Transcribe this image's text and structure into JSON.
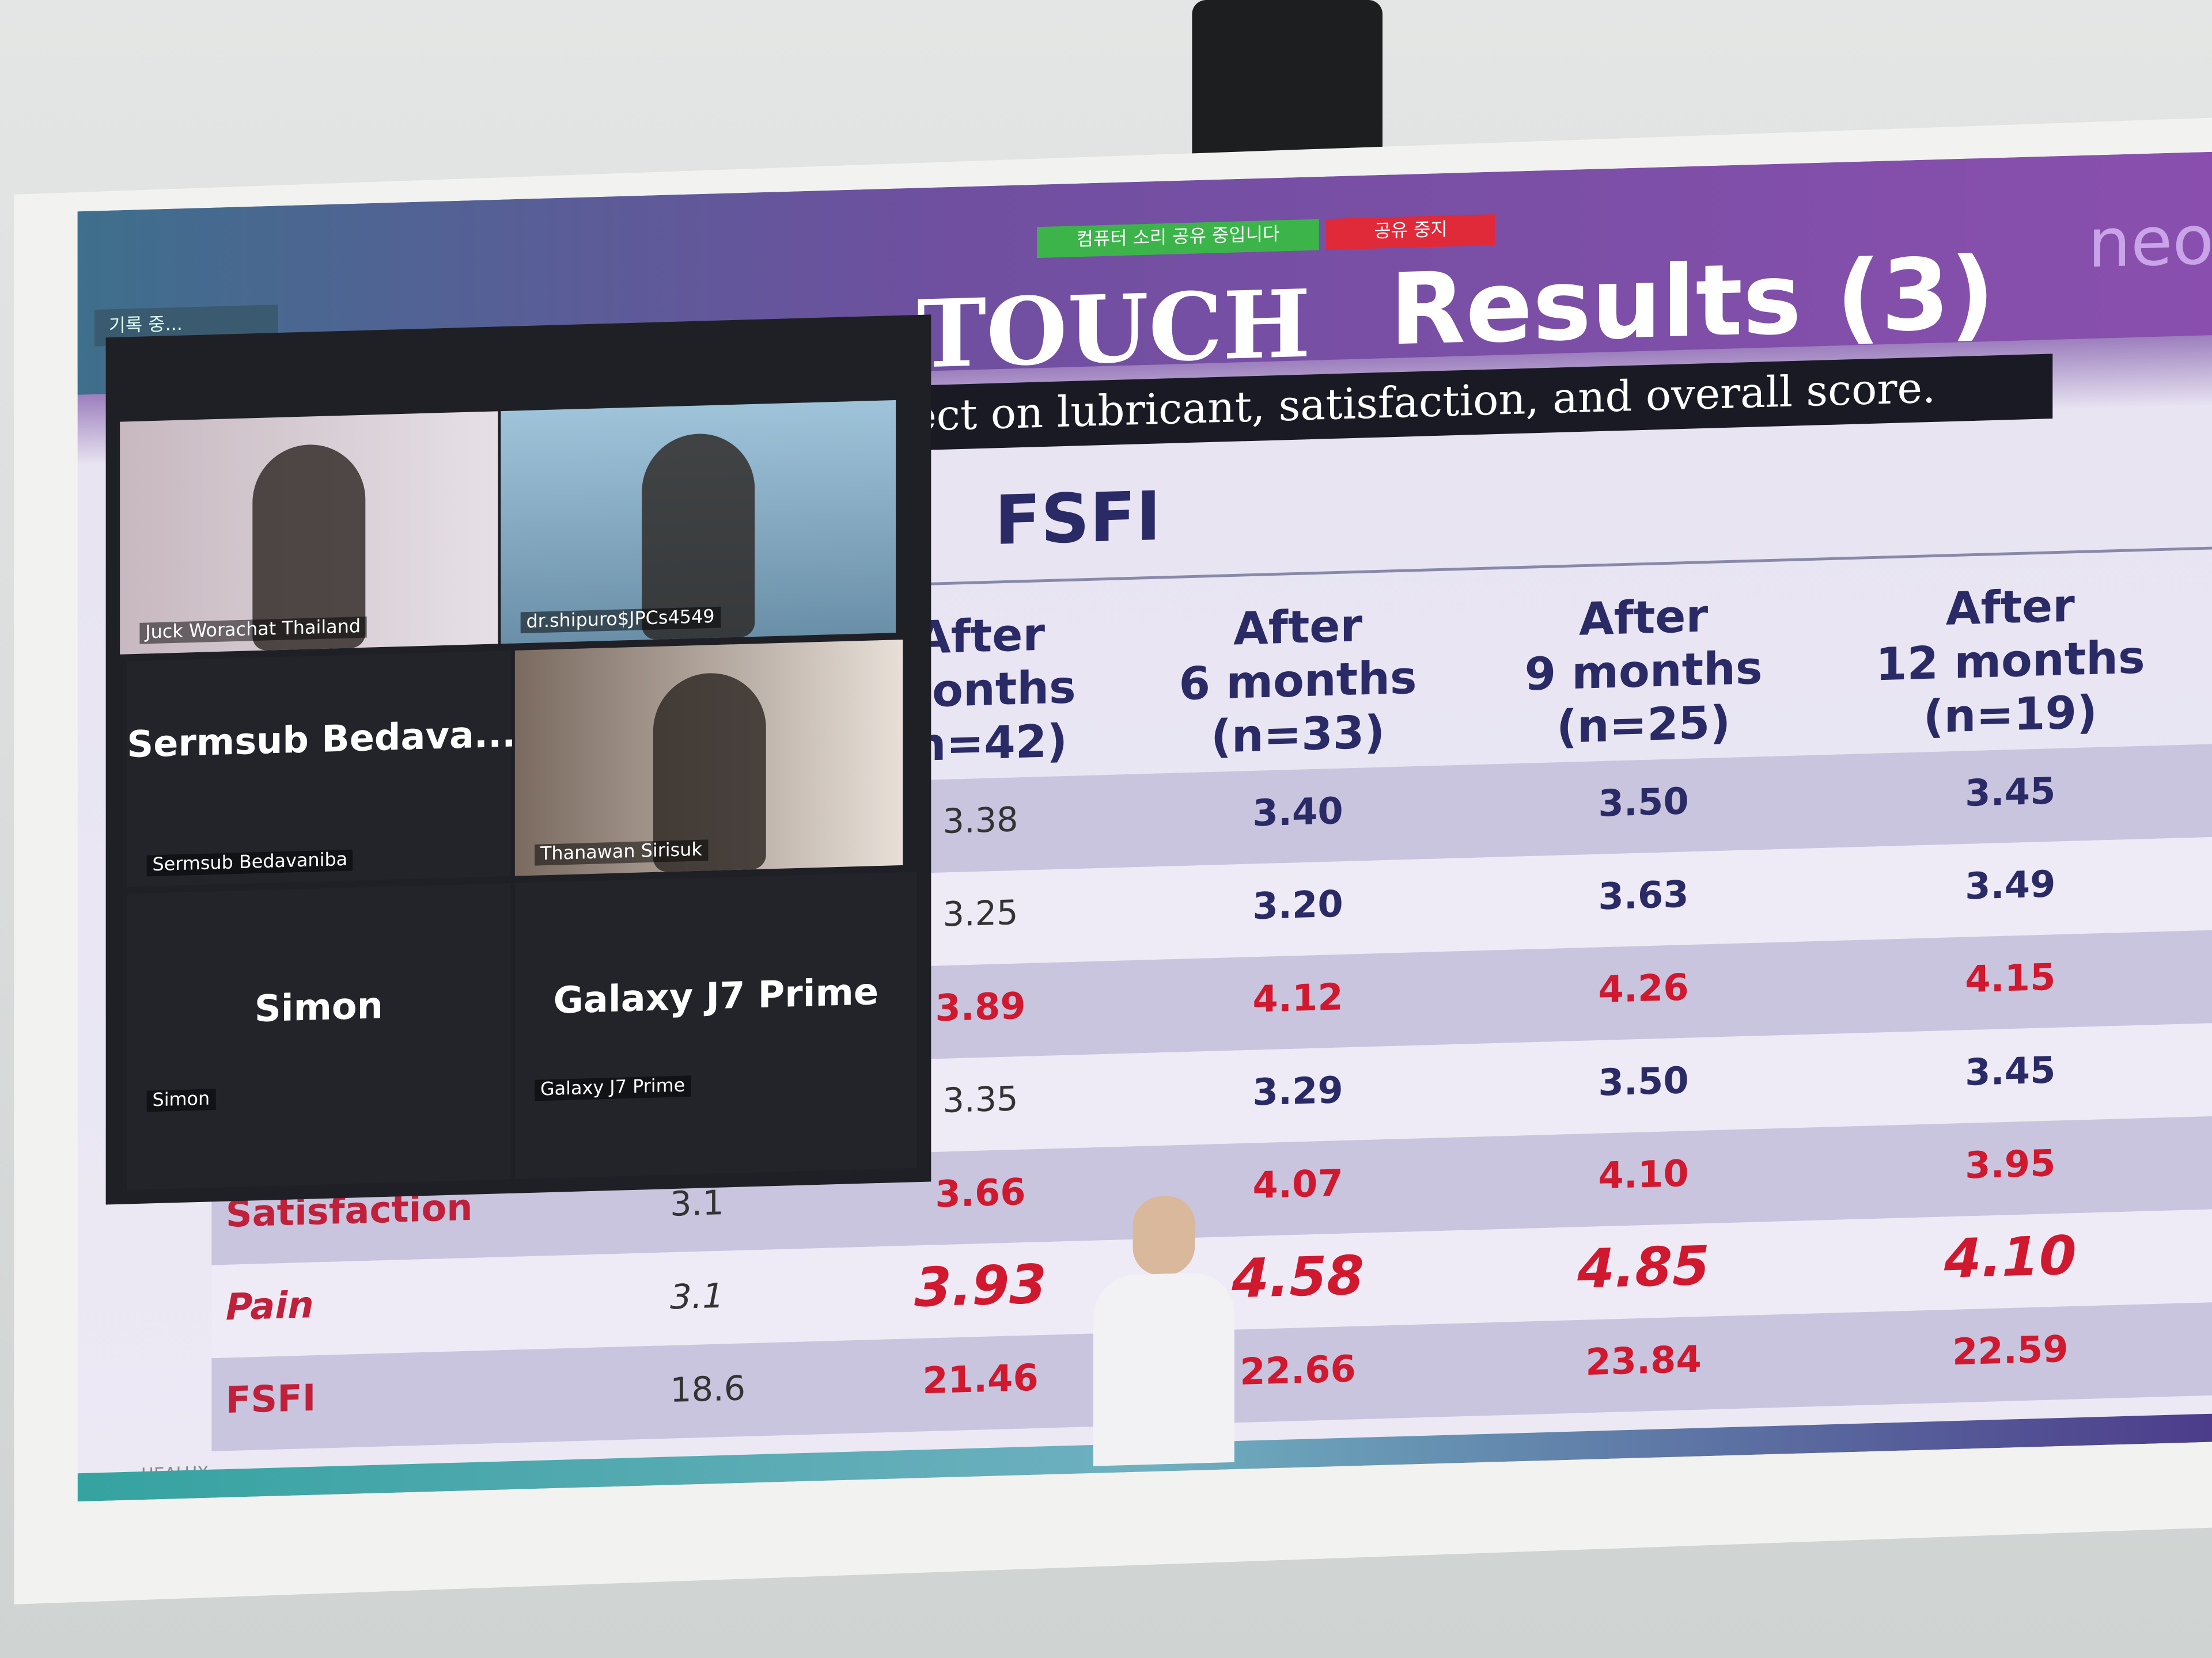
{
  "zoom_bar": {
    "sound_sharing": "컴퓨터 소리 공유 중입니다",
    "stop_share": "공유 중지",
    "recording": "기록 중..."
  },
  "slide": {
    "title_left": "TOUCH",
    "title": "Results (3)",
    "subtitle": "fect on lubricant, satisfaction, and overall score.",
    "section": "FSFI",
    "logo": "neo",
    "footer": "HEALUX"
  },
  "table": {
    "headers": [
      [
        "After",
        "months",
        "(n=42)"
      ],
      [
        "After",
        "6 months",
        "(n=33)"
      ],
      [
        "After",
        "9 months",
        "(n=25)"
      ],
      [
        "After",
        "12 months",
        "(n=19)"
      ]
    ],
    "rows": [
      {
        "cells": [
          "3.38",
          "3.40",
          "3.50",
          "3.45"
        ]
      },
      {
        "cells": [
          "3.25",
          "3.20",
          "3.63",
          "3.49"
        ]
      },
      {
        "cells": [
          "3.89",
          "4.12",
          "4.26",
          "4.15"
        ]
      },
      {
        "cells": [
          "3.35",
          "3.29",
          "3.50",
          "3.45"
        ]
      },
      {
        "label": "Satisfaction",
        "baseline": "3.1",
        "cells": [
          "3.66",
          "4.07",
          "4.10",
          "3.95"
        ]
      },
      {
        "label": "Pain",
        "baseline": "3.1",
        "cells": [
          "3.93",
          "4.58",
          "4.85",
          "4.10"
        ]
      },
      {
        "label": "FSFI",
        "baseline": "18.6",
        "cells": [
          "21.46",
          "22.66",
          "23.84",
          "22.59"
        ]
      }
    ]
  },
  "participants": [
    {
      "name": "Juck Worachat Thailand"
    },
    {
      "name": "dr.shipuro$JPCs4549"
    },
    {
      "display": "Sermsub  Bedava...",
      "name": "Sermsub Bedavaniba"
    },
    {
      "name": "Thanawan Sirisuk"
    },
    {
      "display": "Simon",
      "name": "Simon"
    },
    {
      "display": "Galaxy J7 Prime",
      "name": "Galaxy J7 Prime"
    }
  ]
}
